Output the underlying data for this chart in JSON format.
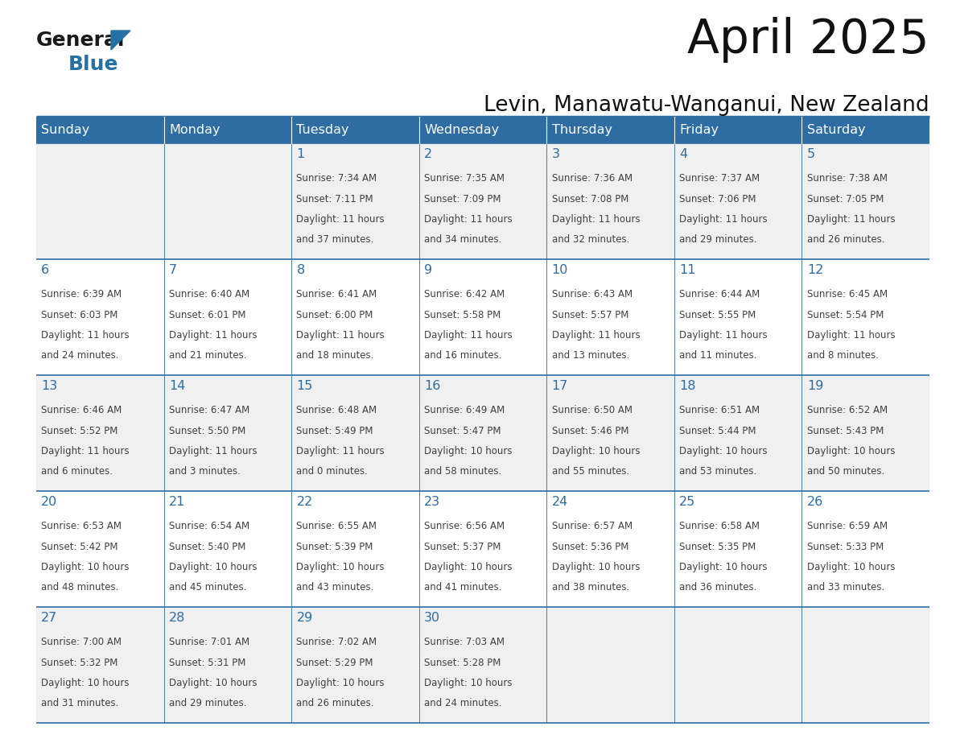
{
  "title": "April 2025",
  "subtitle": "Levin, Manawatu-Wanganui, New Zealand",
  "days_of_week": [
    "Sunday",
    "Monday",
    "Tuesday",
    "Wednesday",
    "Thursday",
    "Friday",
    "Saturday"
  ],
  "header_bg": "#2E6DA4",
  "header_text": "#FFFFFF",
  "row_bg_odd": "#F0F0F0",
  "row_bg_even": "#FFFFFF",
  "day_number_color": "#2E6DA4",
  "text_color": "#404040",
  "line_color": "#2E6DA4",
  "logo_color1": "#1a1a1a",
  "logo_color2": "#2471A3",
  "logo_triangle_color": "#2471A3",
  "calendar": [
    [
      {
        "day": "",
        "sunrise": "",
        "sunset": "",
        "daylight": ""
      },
      {
        "day": "",
        "sunrise": "",
        "sunset": "",
        "daylight": ""
      },
      {
        "day": "1",
        "sunrise": "7:34 AM",
        "sunset": "7:11 PM",
        "daylight": "11 hours and 37 minutes."
      },
      {
        "day": "2",
        "sunrise": "7:35 AM",
        "sunset": "7:09 PM",
        "daylight": "11 hours and 34 minutes."
      },
      {
        "day": "3",
        "sunrise": "7:36 AM",
        "sunset": "7:08 PM",
        "daylight": "11 hours and 32 minutes."
      },
      {
        "day": "4",
        "sunrise": "7:37 AM",
        "sunset": "7:06 PM",
        "daylight": "11 hours and 29 minutes."
      },
      {
        "day": "5",
        "sunrise": "7:38 AM",
        "sunset": "7:05 PM",
        "daylight": "11 hours and 26 minutes."
      }
    ],
    [
      {
        "day": "6",
        "sunrise": "6:39 AM",
        "sunset": "6:03 PM",
        "daylight": "11 hours and 24 minutes."
      },
      {
        "day": "7",
        "sunrise": "6:40 AM",
        "sunset": "6:01 PM",
        "daylight": "11 hours and 21 minutes."
      },
      {
        "day": "8",
        "sunrise": "6:41 AM",
        "sunset": "6:00 PM",
        "daylight": "11 hours and 18 minutes."
      },
      {
        "day": "9",
        "sunrise": "6:42 AM",
        "sunset": "5:58 PM",
        "daylight": "11 hours and 16 minutes."
      },
      {
        "day": "10",
        "sunrise": "6:43 AM",
        "sunset": "5:57 PM",
        "daylight": "11 hours and 13 minutes."
      },
      {
        "day": "11",
        "sunrise": "6:44 AM",
        "sunset": "5:55 PM",
        "daylight": "11 hours and 11 minutes."
      },
      {
        "day": "12",
        "sunrise": "6:45 AM",
        "sunset": "5:54 PM",
        "daylight": "11 hours and 8 minutes."
      }
    ],
    [
      {
        "day": "13",
        "sunrise": "6:46 AM",
        "sunset": "5:52 PM",
        "daylight": "11 hours and 6 minutes."
      },
      {
        "day": "14",
        "sunrise": "6:47 AM",
        "sunset": "5:50 PM",
        "daylight": "11 hours and 3 minutes."
      },
      {
        "day": "15",
        "sunrise": "6:48 AM",
        "sunset": "5:49 PM",
        "daylight": "11 hours and 0 minutes."
      },
      {
        "day": "16",
        "sunrise": "6:49 AM",
        "sunset": "5:47 PM",
        "daylight": "10 hours and 58 minutes."
      },
      {
        "day": "17",
        "sunrise": "6:50 AM",
        "sunset": "5:46 PM",
        "daylight": "10 hours and 55 minutes."
      },
      {
        "day": "18",
        "sunrise": "6:51 AM",
        "sunset": "5:44 PM",
        "daylight": "10 hours and 53 minutes."
      },
      {
        "day": "19",
        "sunrise": "6:52 AM",
        "sunset": "5:43 PM",
        "daylight": "10 hours and 50 minutes."
      }
    ],
    [
      {
        "day": "20",
        "sunrise": "6:53 AM",
        "sunset": "5:42 PM",
        "daylight": "10 hours and 48 minutes."
      },
      {
        "day": "21",
        "sunrise": "6:54 AM",
        "sunset": "5:40 PM",
        "daylight": "10 hours and 45 minutes."
      },
      {
        "day": "22",
        "sunrise": "6:55 AM",
        "sunset": "5:39 PM",
        "daylight": "10 hours and 43 minutes."
      },
      {
        "day": "23",
        "sunrise": "6:56 AM",
        "sunset": "5:37 PM",
        "daylight": "10 hours and 41 minutes."
      },
      {
        "day": "24",
        "sunrise": "6:57 AM",
        "sunset": "5:36 PM",
        "daylight": "10 hours and 38 minutes."
      },
      {
        "day": "25",
        "sunrise": "6:58 AM",
        "sunset": "5:35 PM",
        "daylight": "10 hours and 36 minutes."
      },
      {
        "day": "26",
        "sunrise": "6:59 AM",
        "sunset": "5:33 PM",
        "daylight": "10 hours and 33 minutes."
      }
    ],
    [
      {
        "day": "27",
        "sunrise": "7:00 AM",
        "sunset": "5:32 PM",
        "daylight": "10 hours and 31 minutes."
      },
      {
        "day": "28",
        "sunrise": "7:01 AM",
        "sunset": "5:31 PM",
        "daylight": "10 hours and 29 minutes."
      },
      {
        "day": "29",
        "sunrise": "7:02 AM",
        "sunset": "5:29 PM",
        "daylight": "10 hours and 26 minutes."
      },
      {
        "day": "30",
        "sunrise": "7:03 AM",
        "sunset": "5:28 PM",
        "daylight": "10 hours and 24 minutes."
      },
      {
        "day": "",
        "sunrise": "",
        "sunset": "",
        "daylight": ""
      },
      {
        "day": "",
        "sunrise": "",
        "sunset": "",
        "daylight": ""
      },
      {
        "day": "",
        "sunrise": "",
        "sunset": "",
        "daylight": ""
      }
    ]
  ]
}
